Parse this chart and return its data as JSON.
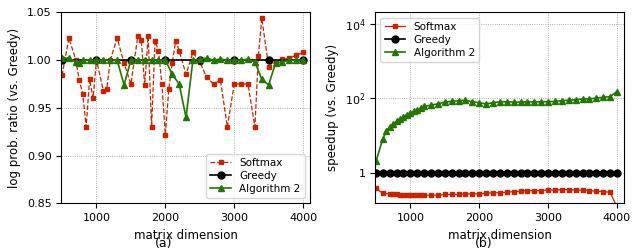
{
  "left": {
    "xlabel": "matrix dimension",
    "ylabel": "log prob. ratio (vs. Greedy)",
    "ylim": [
      0.85,
      1.05
    ],
    "xlim": [
      490,
      4100
    ],
    "xticks": [
      1000,
      2000,
      3000,
      4000
    ],
    "yticks": [
      0.85,
      0.9,
      0.95,
      1.0,
      1.05
    ],
    "label": "(a)",
    "softmax_x": [
      500,
      600,
      700,
      750,
      800,
      850,
      900,
      950,
      1000,
      1100,
      1150,
      1200,
      1300,
      1400,
      1500,
      1600,
      1650,
      1700,
      1750,
      1800,
      1850,
      1900,
      1950,
      2000,
      2050,
      2100,
      2150,
      2200,
      2300,
      2400,
      2500,
      2600,
      2700,
      2800,
      2900,
      3000,
      3100,
      3200,
      3300,
      3350,
      3400,
      3500,
      3600,
      3700,
      3800,
      3900,
      4000
    ],
    "softmax_y": [
      0.984,
      1.023,
      1.0,
      0.979,
      0.965,
      0.93,
      0.98,
      0.96,
      1.0,
      0.968,
      0.97,
      1.0,
      1.023,
      0.997,
      0.975,
      1.025,
      1.021,
      0.974,
      1.025,
      0.93,
      1.02,
      1.01,
      0.975,
      0.922,
      0.97,
      0.997,
      1.02,
      1.01,
      0.985,
      1.008,
      0.998,
      0.982,
      0.975,
      0.979,
      0.93,
      0.975,
      0.975,
      0.975,
      0.93,
      1.004,
      1.044,
      0.993,
      0.998,
      1.001,
      1.002,
      1.005,
      1.008
    ],
    "greedy_x": [
      500,
      1000,
      1500,
      2000,
      2500,
      3000,
      3500,
      4000
    ],
    "greedy_y": [
      1.0,
      1.0,
      1.0,
      1.0,
      1.0,
      1.0,
      1.0,
      1.0
    ],
    "alg2_x": [
      500,
      600,
      700,
      750,
      800,
      900,
      1000,
      1100,
      1200,
      1300,
      1400,
      1500,
      1600,
      1700,
      1800,
      1900,
      2000,
      2100,
      2200,
      2300,
      2400,
      2500,
      2600,
      2700,
      2800,
      2900,
      3000,
      3100,
      3200,
      3300,
      3400,
      3500,
      3600,
      3700,
      3800,
      3900,
      4000
    ],
    "alg2_y": [
      1.002,
      1.002,
      0.998,
      0.997,
      1.0,
      1.0,
      1.0,
      1.0,
      1.0,
      1.0,
      0.974,
      1.0,
      1.0,
      1.0,
      1.0,
      1.0,
      1.0,
      0.985,
      0.975,
      0.94,
      1.0,
      1.001,
      1.002,
      1.0,
      1.001,
      1.0,
      1.0,
      1.0,
      1.001,
      0.998,
      0.98,
      0.974,
      0.997,
      0.998,
      1.0,
      1.0,
      1.0
    ],
    "softmax_color": "#cc2200",
    "greedy_color": "#000000",
    "alg2_color": "#227700"
  },
  "right": {
    "xlabel": "matrix dimension",
    "ylabel": "speedup (vs. Greedy)",
    "xlim": [
      490,
      4100
    ],
    "xticks": [
      1000,
      2000,
      3000,
      4000
    ],
    "label": "(b)",
    "softmax_x": [
      500,
      600,
      700,
      750,
      800,
      850,
      900,
      950,
      1000,
      1050,
      1100,
      1150,
      1200,
      1300,
      1400,
      1500,
      1600,
      1700,
      1800,
      1900,
      2000,
      2100,
      2200,
      2300,
      2400,
      2500,
      2600,
      2700,
      2800,
      2900,
      3000,
      3100,
      3200,
      3300,
      3400,
      3500,
      3600,
      3700,
      3800,
      3900,
      4000
    ],
    "softmax_y": [
      0.38,
      0.28,
      0.27,
      0.27,
      0.26,
      0.25,
      0.25,
      0.25,
      0.25,
      0.25,
      0.25,
      0.25,
      0.25,
      0.25,
      0.25,
      0.26,
      0.26,
      0.26,
      0.27,
      0.27,
      0.27,
      0.28,
      0.29,
      0.29,
      0.3,
      0.31,
      0.32,
      0.33,
      0.33,
      0.33,
      0.34,
      0.34,
      0.35,
      0.35,
      0.34,
      0.34,
      0.33,
      0.32,
      0.31,
      0.3,
      0.12
    ],
    "greedy_x": [
      500,
      600,
      700,
      800,
      900,
      1000,
      1100,
      1200,
      1300,
      1400,
      1500,
      1600,
      1700,
      1800,
      1900,
      2000,
      2100,
      2200,
      2300,
      2400,
      2500,
      2600,
      2700,
      2800,
      2900,
      3000,
      3100,
      3200,
      3300,
      3400,
      3500,
      3600,
      3700,
      3800,
      3900,
      4000
    ],
    "greedy_y": [
      1.0,
      1.0,
      1.0,
      1.0,
      1.0,
      1.0,
      1.0,
      1.0,
      1.0,
      1.0,
      1.0,
      1.0,
      1.0,
      1.0,
      1.0,
      1.0,
      1.0,
      1.0,
      1.0,
      1.0,
      1.0,
      1.0,
      1.0,
      1.0,
      1.0,
      1.0,
      1.0,
      1.0,
      1.0,
      1.0,
      1.0,
      1.0,
      1.0,
      1.0,
      1.0,
      1.0
    ],
    "alg2_x": [
      500,
      600,
      650,
      700,
      750,
      800,
      850,
      900,
      950,
      1000,
      1050,
      1100,
      1150,
      1200,
      1300,
      1400,
      1500,
      1600,
      1700,
      1800,
      1900,
      2000,
      2100,
      2200,
      2300,
      2400,
      2500,
      2600,
      2700,
      2800,
      2900,
      3000,
      3100,
      3200,
      3300,
      3400,
      3500,
      3600,
      3700,
      3800,
      3900,
      4000
    ],
    "alg2_y": [
      2.0,
      8.0,
      13.0,
      17.0,
      20.0,
      24.0,
      28.0,
      32.0,
      36.0,
      40.0,
      44.0,
      48.0,
      54.0,
      60.0,
      65.0,
      70.0,
      78.0,
      82.0,
      85.0,
      88.0,
      80.0,
      75.0,
      70.0,
      75.0,
      80.0,
      80.0,
      78.0,
      78.0,
      80.0,
      78.0,
      80.0,
      80.0,
      82.0,
      85.0,
      88.0,
      90.0,
      95.0,
      95.0,
      100.0,
      105.0,
      110.0,
      150.0
    ],
    "softmax_color": "#cc2200",
    "greedy_color": "#000000",
    "alg2_color": "#227700"
  }
}
